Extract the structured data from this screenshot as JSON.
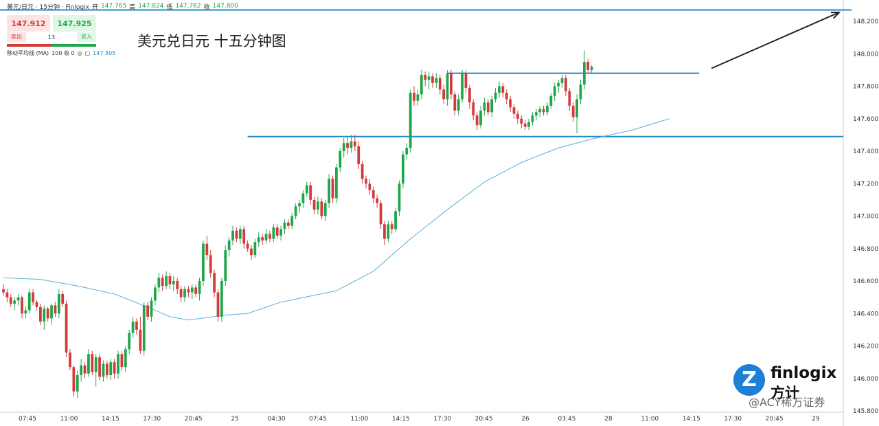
{
  "header": {
    "symbol": "美元/日元 · 15分钟 · Finlogix",
    "open_label": "开",
    "open": "147.765",
    "high_label": "高",
    "high": "147.824",
    "low_label": "低",
    "low": "147.762",
    "close_label": "收",
    "close": "147.800"
  },
  "trade": {
    "sell_price": "147.912",
    "buy_price": "147.925",
    "sell_label": "卖出",
    "buy_label": "买入",
    "quantity": "13"
  },
  "indicator": {
    "label": "移动平均线 (MA)",
    "params": "100 收 0",
    "value": "147.505"
  },
  "title": "美元兑日元 十五分钟图",
  "logo": {
    "brand": "finlogix",
    "brand_cn": "方计",
    "mark": "Z"
  },
  "watermark": "@ACY稀万证券",
  "colors": {
    "up": "#1fa64a",
    "down": "#d33b3b",
    "ma": "#5aaedc",
    "level": "#1e88c8",
    "arrow": "#222222"
  },
  "chart_data": {
    "type": "candlestick",
    "y_ticks": [
      "148.200",
      "148.000",
      "147.800",
      "147.600",
      "147.400",
      "147.200",
      "147.000",
      "146.800",
      "146.600",
      "146.400",
      "146.200",
      "146.000",
      "145.800"
    ],
    "ylim": [
      145.8,
      148.27
    ],
    "x_ticks": [
      "07:45",
      "11:00",
      "14:15",
      "17:30",
      "20:45",
      "25",
      "04:30",
      "07:45",
      "11:00",
      "14:15",
      "17:30",
      "20:45",
      "26",
      "03:45",
      "28",
      "11:00",
      "14:15",
      "17:30",
      "20:45",
      "29"
    ],
    "x_range": [
      0,
      227
    ],
    "levels": [
      {
        "name": "resistance",
        "value": 147.88,
        "x_start": 120,
        "x_end": 227
      },
      {
        "name": "support",
        "value": 147.49,
        "x_start": 66,
        "x_end": 227
      },
      {
        "name": "top",
        "value": 148.27,
        "x_start": 0,
        "x_end": 227
      }
    ],
    "arrow": {
      "from": [
        188,
        147.91
      ],
      "to": [
        222,
        148.14
      ]
    },
    "ma": [
      [
        0,
        146.62
      ],
      [
        10,
        146.61
      ],
      [
        20,
        146.57
      ],
      [
        30,
        146.52
      ],
      [
        40,
        146.43
      ],
      [
        45,
        146.38
      ],
      [
        50,
        146.36
      ],
      [
        60,
        146.39
      ],
      [
        66,
        146.4
      ],
      [
        75,
        146.47
      ],
      [
        90,
        146.54
      ],
      [
        100,
        146.66
      ],
      [
        110,
        146.86
      ],
      [
        120,
        147.04
      ],
      [
        130,
        147.21
      ],
      [
        140,
        147.33
      ],
      [
        150,
        147.42
      ],
      [
        160,
        147.48
      ],
      [
        170,
        147.53
      ],
      [
        180,
        147.6
      ]
    ],
    "candles": [
      [
        146.55,
        146.58,
        146.51,
        146.53
      ],
      [
        146.53,
        146.55,
        146.47,
        146.5
      ],
      [
        146.5,
        146.52,
        146.44,
        146.46
      ],
      [
        146.46,
        146.5,
        146.42,
        146.48
      ],
      [
        146.48,
        146.52,
        146.45,
        146.5
      ],
      [
        146.5,
        146.51,
        146.37,
        146.4
      ],
      [
        146.4,
        146.44,
        146.37,
        146.42
      ],
      [
        146.42,
        146.55,
        146.4,
        146.53
      ],
      [
        146.53,
        146.55,
        146.45,
        146.47
      ],
      [
        146.47,
        146.48,
        146.42,
        146.44
      ],
      [
        146.44,
        146.46,
        146.33,
        146.35
      ],
      [
        146.35,
        146.45,
        146.3,
        146.43
      ],
      [
        146.43,
        146.44,
        146.35,
        146.37
      ],
      [
        146.37,
        146.46,
        146.33,
        146.45
      ],
      [
        146.45,
        146.47,
        146.38,
        146.4
      ],
      [
        146.4,
        146.55,
        146.37,
        146.52
      ],
      [
        146.52,
        146.54,
        146.44,
        146.46
      ],
      [
        146.46,
        146.48,
        146.13,
        146.16
      ],
      [
        146.16,
        146.18,
        146.05,
        146.07
      ],
      [
        146.07,
        146.08,
        145.89,
        145.92
      ],
      [
        145.92,
        146.05,
        145.88,
        146.02
      ],
      [
        146.02,
        146.12,
        145.98,
        146.08
      ],
      [
        146.08,
        146.1,
        146.0,
        146.03
      ],
      [
        146.03,
        146.18,
        146.01,
        146.15
      ],
      [
        146.15,
        146.17,
        146.02,
        146.04
      ],
      [
        146.04,
        146.15,
        145.95,
        146.13
      ],
      [
        146.13,
        146.15,
        145.99,
        146.01
      ],
      [
        146.01,
        146.11,
        145.98,
        146.09
      ],
      [
        146.09,
        146.11,
        146.0,
        146.02
      ],
      [
        146.02,
        146.12,
        145.99,
        146.1
      ],
      [
        146.1,
        146.12,
        146.0,
        146.03
      ],
      [
        146.03,
        146.17,
        146.0,
        146.15
      ],
      [
        146.15,
        146.17,
        146.05,
        146.07
      ],
      [
        146.07,
        146.2,
        146.04,
        146.18
      ],
      [
        146.18,
        146.3,
        146.15,
        146.28
      ],
      [
        146.28,
        146.38,
        146.25,
        146.35
      ],
      [
        146.35,
        146.37,
        146.27,
        146.3
      ],
      [
        146.3,
        146.38,
        146.15,
        146.17
      ],
      [
        146.17,
        146.47,
        146.14,
        146.45
      ],
      [
        146.45,
        146.47,
        146.36,
        146.38
      ],
      [
        146.38,
        146.5,
        146.35,
        146.48
      ],
      [
        146.48,
        146.58,
        146.45,
        146.56
      ],
      [
        146.56,
        146.65,
        146.53,
        146.62
      ],
      [
        146.62,
        146.64,
        146.54,
        146.57
      ],
      [
        146.57,
        146.66,
        146.55,
        146.63
      ],
      [
        146.63,
        146.65,
        146.55,
        146.58
      ],
      [
        146.58,
        146.63,
        146.54,
        146.6
      ],
      [
        146.6,
        146.62,
        146.52,
        146.55
      ],
      [
        146.55,
        146.57,
        146.47,
        146.5
      ],
      [
        146.5,
        146.57,
        146.47,
        146.55
      ],
      [
        146.55,
        146.57,
        146.5,
        146.53
      ],
      [
        146.53,
        146.58,
        146.49,
        146.56
      ],
      [
        146.56,
        146.58,
        146.5,
        146.52
      ],
      [
        146.52,
        146.62,
        146.48,
        146.6
      ],
      [
        146.6,
        146.85,
        146.57,
        146.83
      ],
      [
        146.83,
        146.88,
        146.73,
        146.76
      ],
      [
        146.76,
        146.79,
        146.62,
        146.65
      ],
      [
        146.65,
        146.67,
        146.5,
        146.53
      ],
      [
        146.53,
        146.55,
        146.35,
        146.38
      ],
      [
        146.38,
        146.62,
        146.35,
        146.6
      ],
      [
        146.6,
        146.82,
        146.57,
        146.79
      ],
      [
        146.79,
        146.87,
        146.75,
        146.85
      ],
      [
        146.85,
        146.94,
        146.82,
        146.91
      ],
      [
        146.91,
        146.93,
        146.84,
        146.86
      ],
      [
        146.86,
        146.94,
        146.83,
        146.92
      ],
      [
        146.92,
        146.94,
        146.8,
        146.83
      ],
      [
        146.83,
        146.85,
        146.78,
        146.8
      ],
      [
        146.8,
        146.82,
        146.73,
        146.76
      ],
      [
        146.76,
        146.86,
        146.74,
        146.84
      ],
      [
        146.84,
        146.9,
        146.81,
        146.87
      ],
      [
        146.87,
        146.89,
        146.82,
        146.85
      ],
      [
        146.85,
        146.92,
        146.83,
        146.89
      ],
      [
        146.89,
        146.91,
        146.84,
        146.86
      ],
      [
        146.86,
        146.95,
        146.84,
        146.93
      ],
      [
        146.93,
        146.95,
        146.86,
        146.88
      ],
      [
        146.88,
        146.94,
        146.85,
        146.92
      ],
      [
        146.92,
        146.98,
        146.89,
        146.96
      ],
      [
        146.96,
        146.98,
        146.92,
        146.94
      ],
      [
        146.94,
        147.02,
        146.92,
        147.0
      ],
      [
        147.0,
        147.08,
        146.98,
        147.06
      ],
      [
        147.06,
        147.1,
        147.02,
        147.08
      ],
      [
        147.08,
        147.16,
        147.05,
        147.14
      ],
      [
        147.14,
        147.21,
        147.12,
        147.19
      ],
      [
        147.19,
        147.21,
        147.07,
        147.1
      ],
      [
        147.1,
        147.12,
        147.01,
        147.04
      ],
      [
        147.04,
        147.12,
        147.01,
        147.09
      ],
      [
        147.09,
        147.11,
        146.98,
        147.0
      ],
      [
        147.0,
        147.1,
        146.97,
        147.08
      ],
      [
        147.08,
        147.26,
        147.05,
        147.23
      ],
      [
        147.23,
        147.25,
        147.08,
        147.11
      ],
      [
        147.11,
        147.32,
        147.08,
        147.3
      ],
      [
        147.3,
        147.42,
        147.27,
        147.4
      ],
      [
        147.4,
        147.48,
        147.36,
        147.45
      ],
      [
        147.45,
        147.49,
        147.38,
        147.42
      ],
      [
        147.42,
        147.5,
        147.39,
        147.46
      ],
      [
        147.46,
        147.5,
        147.4,
        147.43
      ],
      [
        147.43,
        147.46,
        147.29,
        147.32
      ],
      [
        147.32,
        147.34,
        147.2,
        147.23
      ],
      [
        147.23,
        147.25,
        147.17,
        147.2
      ],
      [
        147.2,
        147.23,
        147.13,
        147.16
      ],
      [
        147.16,
        147.18,
        147.08,
        147.11
      ],
      [
        147.11,
        147.13,
        147.05,
        147.08
      ],
      [
        147.08,
        147.1,
        146.92,
        146.95
      ],
      [
        146.95,
        146.97,
        146.82,
        146.86
      ],
      [
        146.86,
        146.97,
        146.84,
        146.95
      ],
      [
        146.95,
        146.97,
        146.89,
        146.92
      ],
      [
        146.92,
        147.05,
        146.9,
        147.03
      ],
      [
        147.03,
        147.22,
        147.0,
        147.2
      ],
      [
        147.2,
        147.4,
        147.17,
        147.38
      ],
      [
        147.38,
        147.45,
        147.35,
        147.42
      ],
      [
        147.42,
        147.78,
        147.39,
        147.76
      ],
      [
        147.76,
        147.8,
        147.68,
        147.71
      ],
      [
        147.71,
        147.78,
        147.68,
        147.75
      ],
      [
        147.75,
        147.9,
        147.72,
        147.87
      ],
      [
        147.87,
        147.89,
        147.8,
        147.84
      ],
      [
        147.84,
        147.89,
        147.78,
        147.86
      ],
      [
        147.86,
        147.88,
        147.79,
        147.82
      ],
      [
        147.82,
        147.88,
        147.79,
        147.85
      ],
      [
        147.85,
        147.87,
        147.75,
        147.78
      ],
      [
        147.78,
        147.81,
        147.69,
        147.72
      ],
      [
        147.72,
        147.9,
        147.68,
        147.88
      ],
      [
        147.88,
        147.9,
        147.72,
        147.75
      ],
      [
        147.75,
        147.77,
        147.62,
        147.65
      ],
      [
        147.65,
        147.75,
        147.62,
        147.72
      ],
      [
        147.72,
        147.9,
        147.7,
        147.88
      ],
      [
        147.88,
        147.9,
        147.76,
        147.79
      ],
      [
        147.79,
        147.81,
        147.66,
        147.7
      ],
      [
        147.7,
        147.72,
        147.59,
        147.62
      ],
      [
        147.62,
        147.64,
        147.53,
        147.56
      ],
      [
        147.56,
        147.68,
        147.54,
        147.65
      ],
      [
        147.65,
        147.73,
        147.62,
        147.7
      ],
      [
        147.7,
        147.72,
        147.62,
        147.64
      ],
      [
        147.64,
        147.74,
        147.61,
        147.72
      ],
      [
        147.72,
        147.79,
        147.7,
        147.76
      ],
      [
        147.76,
        147.83,
        147.73,
        147.8
      ],
      [
        147.8,
        147.82,
        147.73,
        147.76
      ],
      [
        147.76,
        147.78,
        147.69,
        147.72
      ],
      [
        147.72,
        147.74,
        147.64,
        147.67
      ],
      [
        147.67,
        147.69,
        147.6,
        147.63
      ],
      [
        147.63,
        147.65,
        147.57,
        147.6
      ],
      [
        147.6,
        147.62,
        147.54,
        147.57
      ],
      [
        147.57,
        147.59,
        147.53,
        147.55
      ],
      [
        147.55,
        147.6,
        147.53,
        147.58
      ],
      [
        147.58,
        147.64,
        147.56,
        147.62
      ],
      [
        147.62,
        147.66,
        147.59,
        147.64
      ],
      [
        147.64,
        147.68,
        147.61,
        147.66
      ],
      [
        147.66,
        147.68,
        147.62,
        147.64
      ],
      [
        147.64,
        147.7,
        147.62,
        147.68
      ],
      [
        147.68,
        147.76,
        147.66,
        147.74
      ],
      [
        147.74,
        147.82,
        147.71,
        147.8
      ],
      [
        147.8,
        147.84,
        147.76,
        147.82
      ],
      [
        147.82,
        147.87,
        147.79,
        147.85
      ],
      [
        147.85,
        147.87,
        147.74,
        147.77
      ],
      [
        147.77,
        147.79,
        147.65,
        147.68
      ],
      [
        147.68,
        147.7,
        147.58,
        147.61
      ],
      [
        147.61,
        147.75,
        147.51,
        147.72
      ],
      [
        147.72,
        147.84,
        147.69,
        147.81
      ],
      [
        147.81,
        148.02,
        147.78,
        147.95
      ],
      [
        147.95,
        147.97,
        147.88,
        147.9
      ],
      [
        147.9,
        147.93,
        147.88,
        147.92
      ]
    ]
  }
}
